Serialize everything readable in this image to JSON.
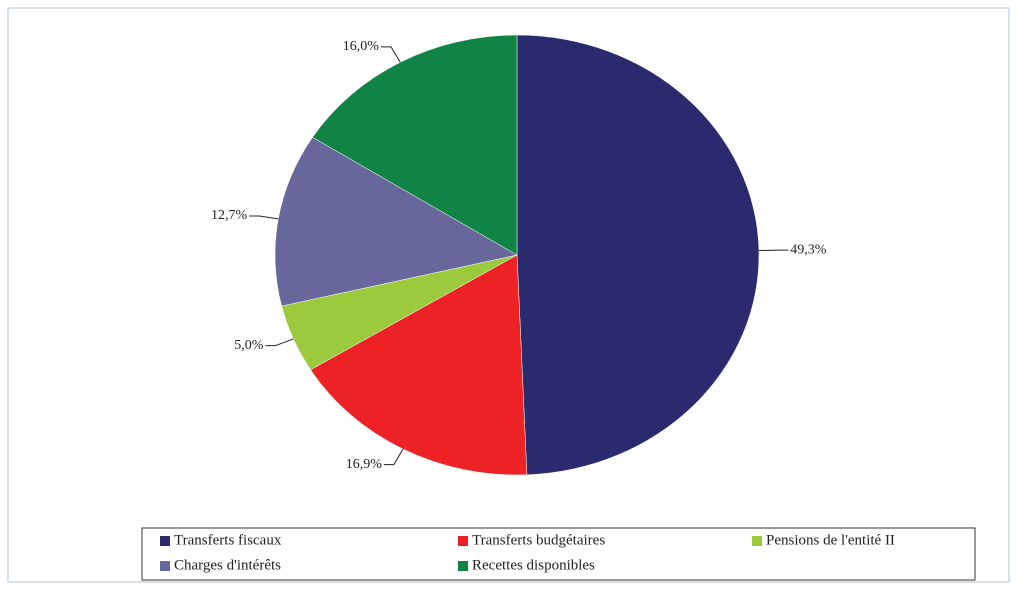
{
  "chart_data": {
    "type": "pie",
    "categories": [
      "Transferts fiscaux",
      "Transferts budgétaires",
      "Pensions de l'entité II",
      "Charges d'intérêts",
      "Recettes disponibles"
    ],
    "values": [
      49.3,
      16.9,
      5.0,
      12.7,
      16.0
    ],
    "value_labels": [
      "49,3%",
      "16,9%",
      "5,0%",
      "12,7%",
      "16,0%"
    ],
    "colors": [
      "#2b2a6e",
      "#ed2224",
      "#9bcb3c",
      "#67679b",
      "#0f8444"
    ],
    "legend": "bottom"
  }
}
